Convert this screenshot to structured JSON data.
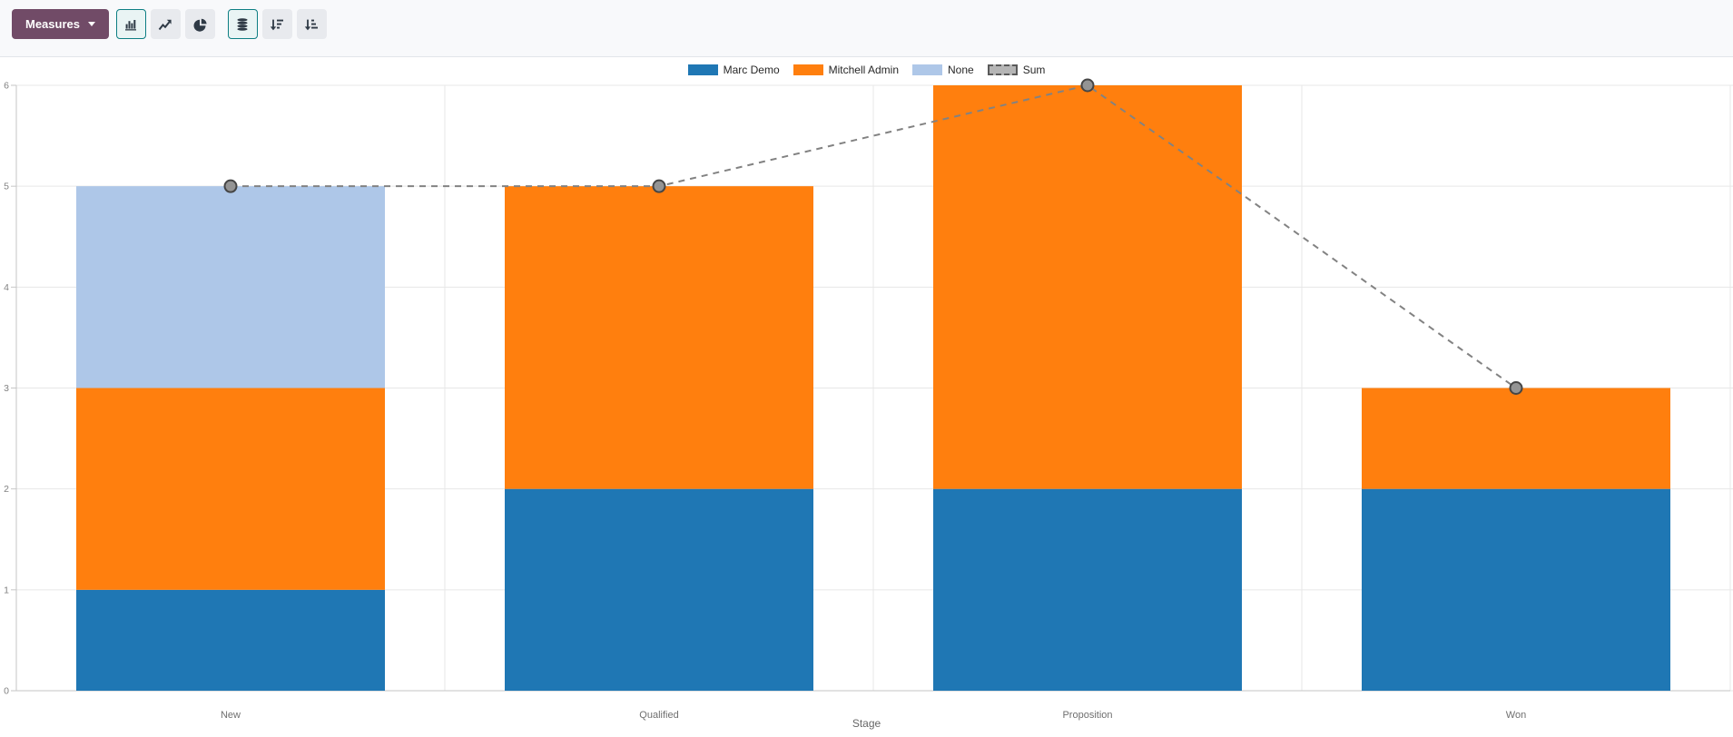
{
  "toolbar": {
    "measures_label": "Measures",
    "view_buttons": [
      {
        "icon": "bar-chart-icon",
        "active": true
      },
      {
        "icon": "line-chart-icon",
        "active": false
      },
      {
        "icon": "pie-chart-icon",
        "active": false
      },
      {
        "icon": "stacked-icon",
        "active": true
      },
      {
        "icon": "sort-descending-icon",
        "active": false
      },
      {
        "icon": "sort-ascending-icon",
        "active": false
      }
    ]
  },
  "chart_data": {
    "type": "bar",
    "stacked": true,
    "title": "",
    "xlabel": "Stage",
    "ylabel": "",
    "ylim": [
      0,
      6
    ],
    "yticks": [
      0,
      1,
      2,
      3,
      4,
      5,
      6
    ],
    "grid": true,
    "legend_position": "top",
    "categories": [
      "New",
      "Qualified",
      "Proposition",
      "Won"
    ],
    "series": [
      {
        "name": "Marc Demo",
        "type": "bar",
        "color": "#1f77b4",
        "values": [
          1,
          2,
          2,
          2
        ]
      },
      {
        "name": "Mitchell Admin",
        "type": "bar",
        "color": "#ff7f0e",
        "values": [
          2,
          3,
          4,
          1
        ]
      },
      {
        "name": "None",
        "type": "bar",
        "color": "#aec7e8",
        "values": [
          2,
          0,
          0,
          0
        ]
      },
      {
        "name": "Sum",
        "type": "line",
        "color": "#828282",
        "dashed": true,
        "values": [
          5,
          5,
          6,
          3
        ]
      }
    ]
  },
  "colors": {
    "measures_bg": "#714b67",
    "active_border": "#0d7e83",
    "button_bg": "#e8eaee",
    "toolbar_bg": "#f8f9fb",
    "grid": "#e7e7e7",
    "axis": "#c6c6c6",
    "sum_line": "#828282",
    "sum_marker_fill": "#949494",
    "sum_marker_stroke": "#454545"
  }
}
